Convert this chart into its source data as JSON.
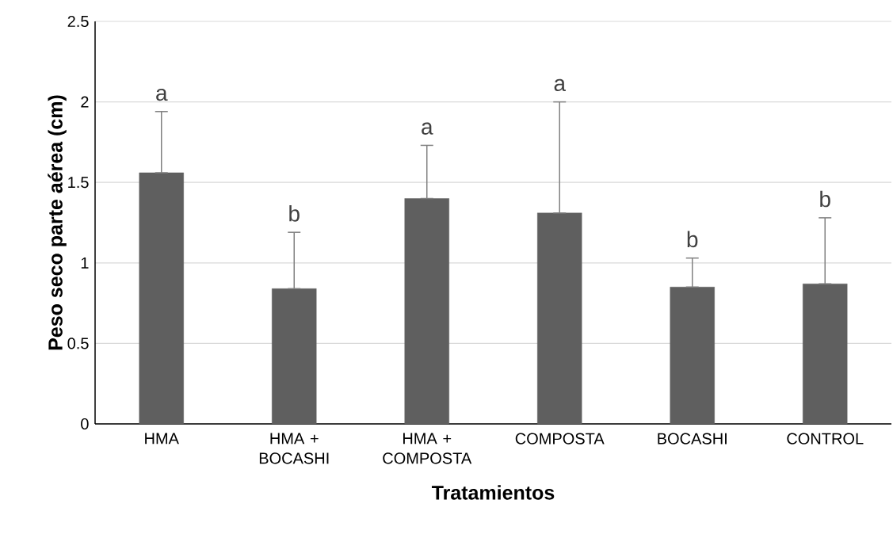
{
  "chart_data": {
    "type": "bar",
    "xlabel": "Tratamientos",
    "ylabel": "Peso seco parte aérea (cm)",
    "categories": [
      "HMA",
      "HMA + BOCASHI",
      "HMA + COMPOSTA",
      "COMPOSTA",
      "BOCASHI",
      "CONTROL"
    ],
    "values": [
      1.56,
      0.84,
      1.4,
      1.31,
      0.85,
      0.87
    ],
    "errors": [
      [
        1.56,
        1.94
      ],
      [
        0.84,
        1.19
      ],
      [
        1.4,
        1.73
      ],
      [
        1.31,
        2.0
      ],
      [
        0.85,
        1.03
      ],
      [
        0.87,
        1.28
      ]
    ],
    "color": "#5f5f5f",
    "ylim": [
      0,
      2.5
    ],
    "yticks": [
      0,
      0.5,
      1,
      1.5,
      2,
      2.5
    ],
    "grid": "y",
    "annotations": [
      "a",
      "b",
      "a",
      "a",
      "b",
      "b"
    ]
  }
}
